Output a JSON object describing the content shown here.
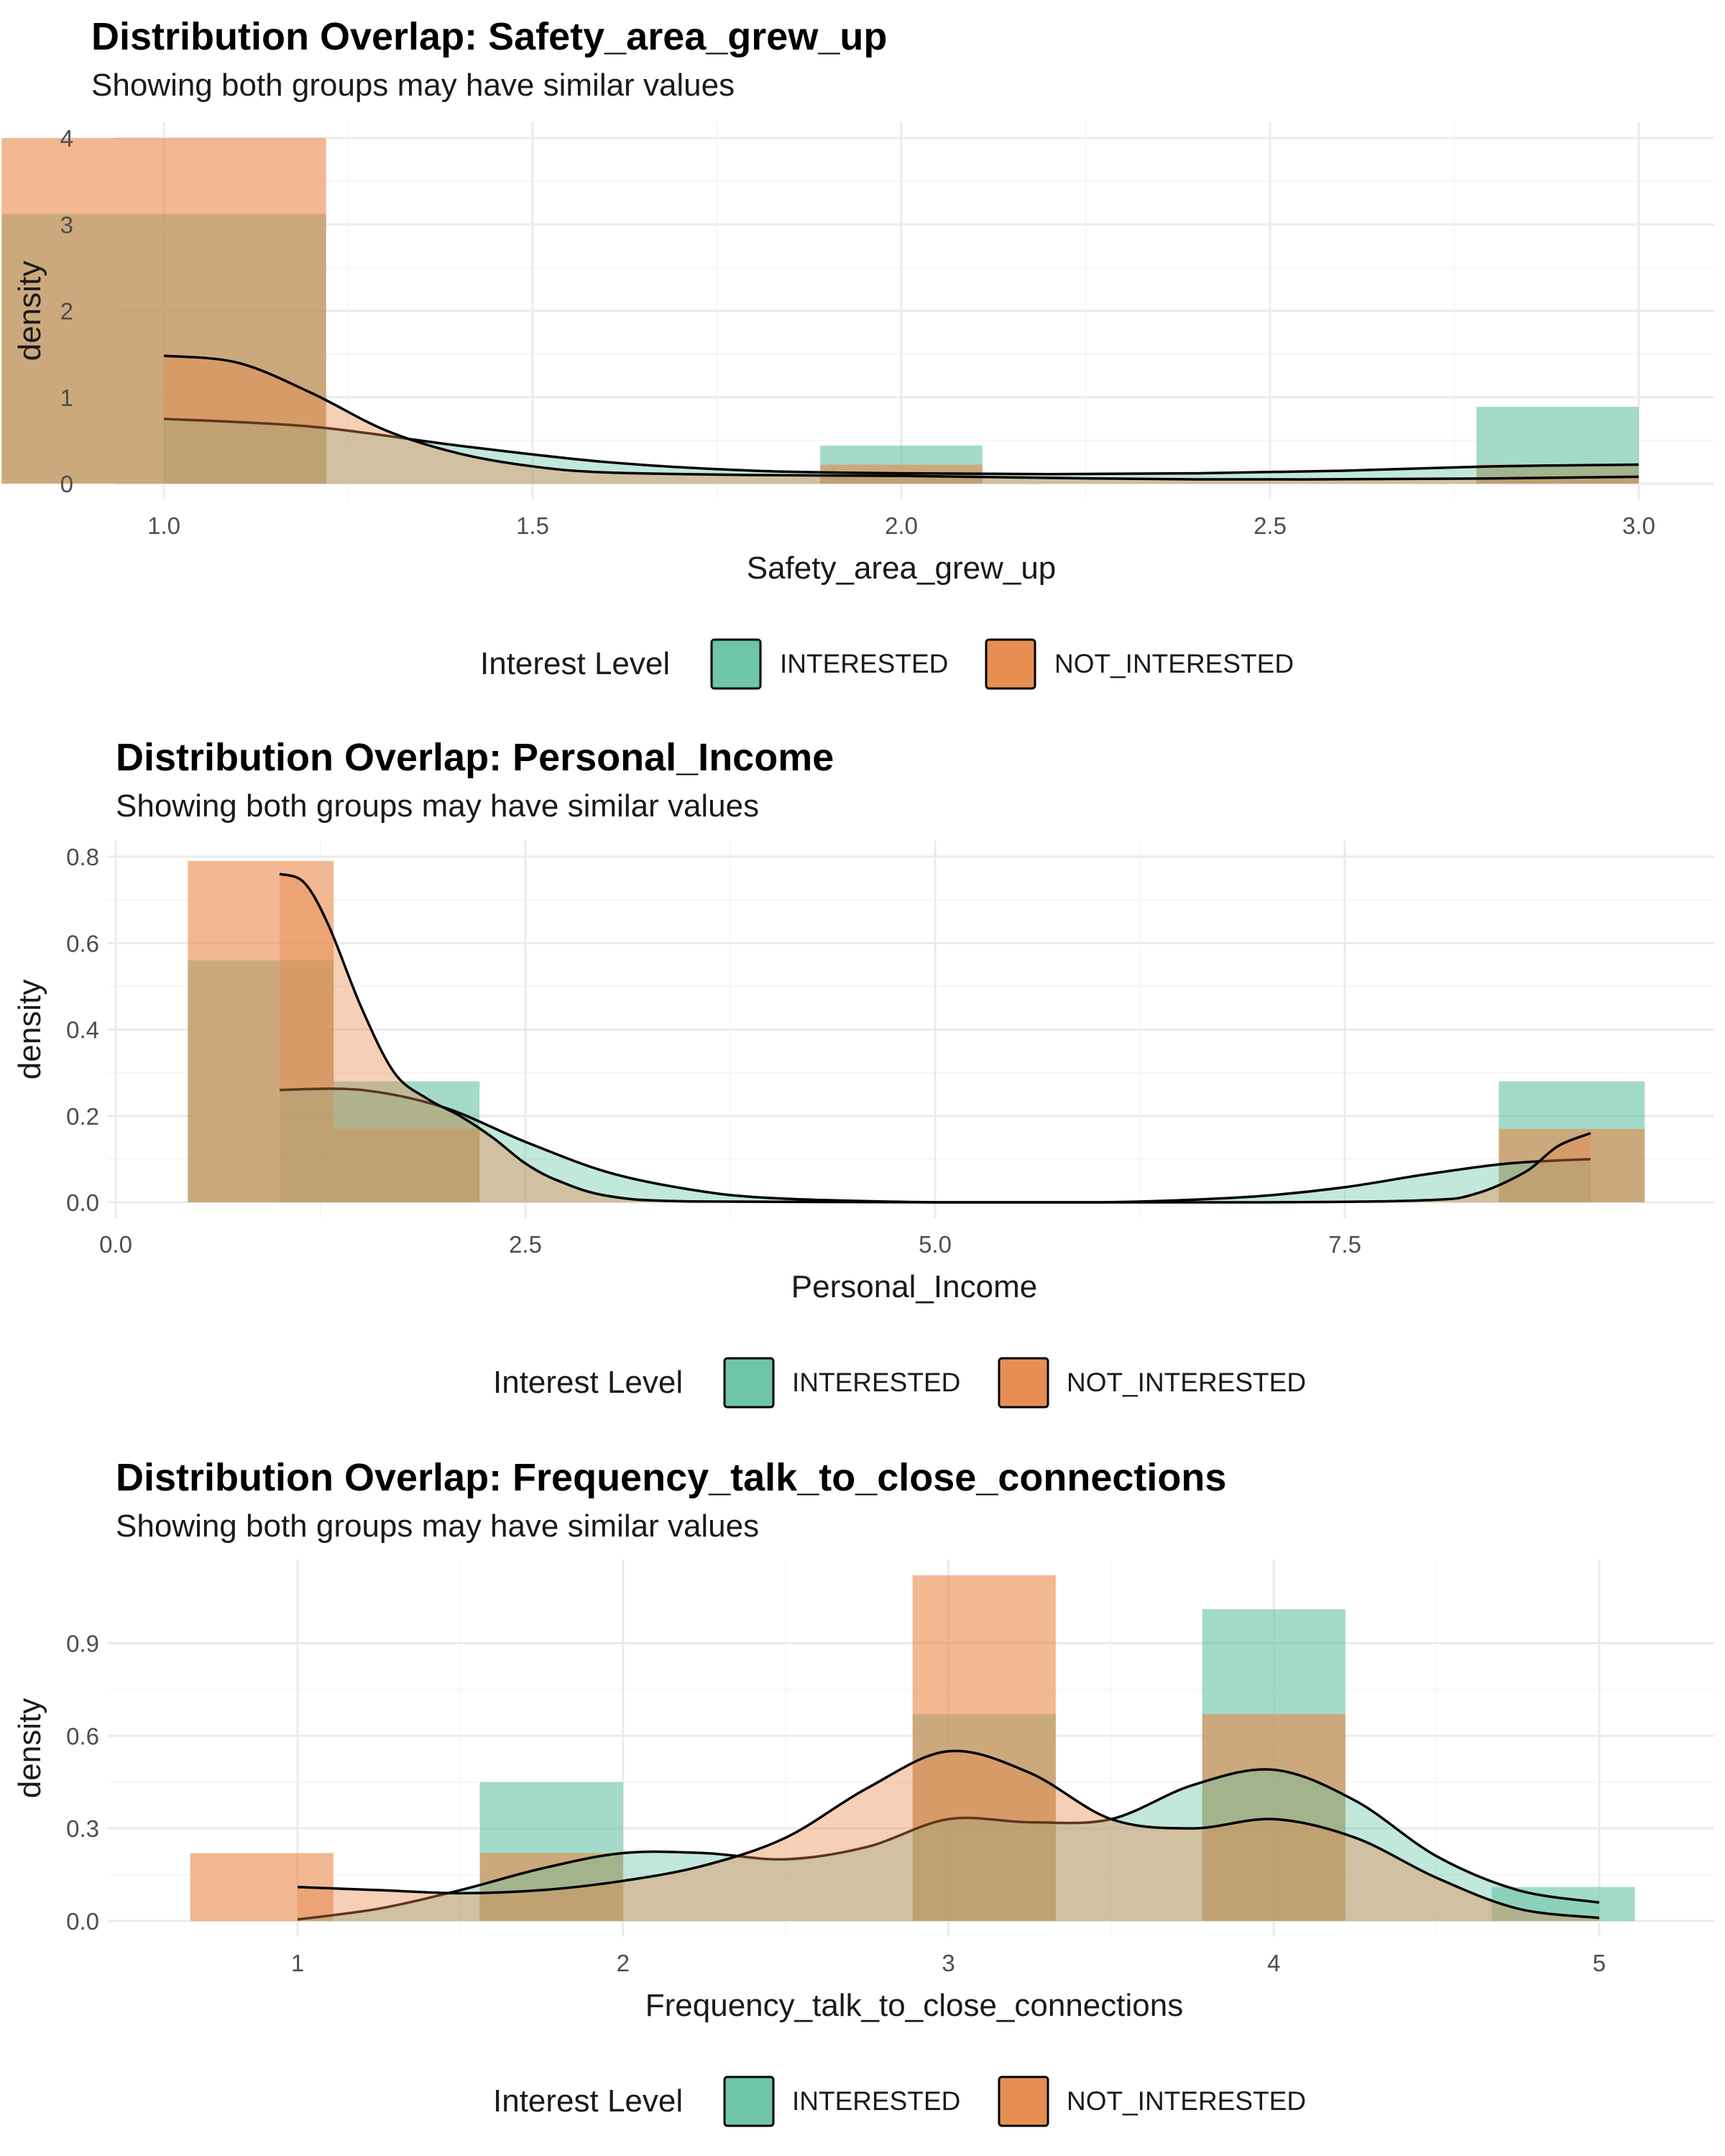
{
  "colors": {
    "INTERESTED": "#66C2A5",
    "NOT_INTERESTED": "#E8884A"
  },
  "chart_data": [
    {
      "type": "histogram+density",
      "title": "Distribution Overlap: Safety_area_grew_up",
      "subtitle": "Showing both groups may have similar values",
      "xlabel": "Safety_area_grew_up",
      "ylabel": "density",
      "xlim": [
        1.0,
        3.0
      ],
      "ylim": [
        0,
        4.0
      ],
      "xticks": [
        1.0,
        1.5,
        2.0,
        2.5,
        3.0
      ],
      "xtick_labels": [
        "1.0",
        "1.5",
        "2.0",
        "2.5",
        "3.0"
      ],
      "yticks": [
        0,
        1,
        2,
        3,
        4
      ],
      "ytick_labels": [
        "0",
        "1",
        "2",
        "3",
        "4"
      ],
      "legend": {
        "title": "Interest Level",
        "position": "bottom",
        "entries": [
          "INTERESTED",
          "NOT_INTERESTED"
        ]
      },
      "histograms": [
        {
          "series": "INTERESTED",
          "bins": [
            {
              "x0": 0.78,
              "x1": 1.22,
              "y": 3.12
            },
            {
              "x0": 1.89,
              "x1": 2.11,
              "y": 0.44
            },
            {
              "x0": 2.78,
              "x1": 3.0,
              "y": 0.89
            }
          ]
        },
        {
          "series": "NOT_INTERESTED",
          "bins": [
            {
              "x0": 0.78,
              "x1": 1.22,
              "y": 4.0
            },
            {
              "x0": 1.89,
              "x1": 2.11,
              "y": 0.22
            },
            {
              "x0": 2.78,
              "x1": 3.0,
              "y": 0.22
            }
          ]
        }
      ],
      "densities": [
        {
          "series": "INTERESTED",
          "x": [
            1.0,
            1.2,
            1.4,
            1.6,
            1.8,
            2.0,
            2.2,
            2.4,
            2.6,
            2.8,
            3.0
          ],
          "y": [
            0.75,
            0.66,
            0.44,
            0.25,
            0.15,
            0.12,
            0.11,
            0.12,
            0.15,
            0.2,
            0.22
          ]
        },
        {
          "series": "NOT_INTERESTED",
          "x": [
            1.0,
            1.1,
            1.2,
            1.3,
            1.4,
            1.5,
            1.6,
            1.8,
            2.0,
            2.4,
            2.8,
            3.0
          ],
          "y": [
            1.48,
            1.4,
            1.05,
            0.62,
            0.35,
            0.2,
            0.13,
            0.1,
            0.09,
            0.05,
            0.06,
            0.08
          ]
        }
      ]
    },
    {
      "type": "histogram+density",
      "title": "Distribution Overlap: Personal_Income",
      "subtitle": "Showing both groups may have similar values",
      "xlabel": "Personal_Income",
      "ylabel": "density",
      "xlim": [
        0.0,
        9.0
      ],
      "ylim": [
        0,
        0.8
      ],
      "xticks": [
        0.0,
        2.5,
        5.0,
        7.5
      ],
      "xtick_labels": [
        "0.0",
        "2.5",
        "5.0",
        "7.5"
      ],
      "yticks": [
        0.0,
        0.2,
        0.4,
        0.6,
        0.8
      ],
      "ytick_labels": [
        "0.0",
        "0.2",
        "0.4",
        "0.6",
        "0.8"
      ],
      "legend": {
        "title": "Interest Level",
        "position": "bottom",
        "entries": [
          "INTERESTED",
          "NOT_INTERESTED"
        ]
      },
      "histograms": [
        {
          "series": "INTERESTED",
          "bins": [
            {
              "x0": 0.44,
              "x1": 1.33,
              "y": 0.56
            },
            {
              "x0": 1.33,
              "x1": 2.22,
              "y": 0.28
            },
            {
              "x0": 8.44,
              "x1": 9.33,
              "y": 0.28
            }
          ]
        },
        {
          "series": "NOT_INTERESTED",
          "bins": [
            {
              "x0": 0.44,
              "x1": 1.33,
              "y": 0.79
            },
            {
              "x0": 1.33,
              "x1": 2.22,
              "y": 0.17
            },
            {
              "x0": 8.44,
              "x1": 9.33,
              "y": 0.17
            }
          ]
        }
      ],
      "densities": [
        {
          "series": "INTERESTED",
          "x": [
            1.0,
            1.5,
            2.0,
            2.5,
            3.0,
            3.5,
            4.0,
            5.0,
            6.0,
            6.5,
            7.0,
            7.5,
            8.0,
            8.5,
            9.0
          ],
          "y": [
            0.26,
            0.26,
            0.22,
            0.14,
            0.07,
            0.03,
            0.01,
            0.0,
            0.0,
            0.005,
            0.015,
            0.035,
            0.065,
            0.09,
            0.1
          ]
        },
        {
          "series": "NOT_INTERESTED",
          "x": [
            1.0,
            1.15,
            1.3,
            1.5,
            1.7,
            1.9,
            2.1,
            2.3,
            2.5,
            2.7,
            3.0,
            3.5,
            5.0,
            7.0,
            8.0,
            8.3,
            8.6,
            8.8,
            9.0
          ],
          "y": [
            0.76,
            0.74,
            0.64,
            0.45,
            0.3,
            0.24,
            0.2,
            0.15,
            0.09,
            0.05,
            0.015,
            0.002,
            0.0,
            0.0,
            0.005,
            0.02,
            0.07,
            0.13,
            0.16
          ]
        }
      ]
    },
    {
      "type": "histogram+density",
      "title": "Distribution Overlap: Frequency_talk_to_close_connections",
      "subtitle": "Showing both groups may have similar values",
      "xlabel": "Frequency_talk_to_close_connections",
      "ylabel": "density",
      "xlim": [
        1.0,
        5.0
      ],
      "ylim": [
        0,
        1.12
      ],
      "xticks": [
        1,
        2,
        3,
        4,
        5
      ],
      "xtick_labels": [
        "1",
        "2",
        "3",
        "4",
        "5"
      ],
      "yticks": [
        0.0,
        0.3,
        0.6,
        0.9
      ],
      "ytick_labels": [
        "0.0",
        "0.3",
        "0.6",
        "0.9"
      ],
      "legend": {
        "title": "Interest Level",
        "position": "bottom",
        "entries": [
          "INTERESTED",
          "NOT_INTERESTED"
        ]
      },
      "histograms": [
        {
          "series": "INTERESTED",
          "bins": [
            {
              "x0": 1.56,
              "x1": 2.0,
              "y": 0.45
            },
            {
              "x0": 2.89,
              "x1": 3.33,
              "y": 0.67
            },
            {
              "x0": 3.78,
              "x1": 4.22,
              "y": 1.01
            },
            {
              "x0": 4.67,
              "x1": 5.11,
              "y": 0.11
            }
          ]
        },
        {
          "series": "NOT_INTERESTED",
          "bins": [
            {
              "x0": 0.67,
              "x1": 1.11,
              "y": 0.22
            },
            {
              "x0": 1.56,
              "x1": 2.0,
              "y": 0.22
            },
            {
              "x0": 2.89,
              "x1": 3.33,
              "y": 1.12
            },
            {
              "x0": 3.78,
              "x1": 4.22,
              "y": 0.67
            }
          ]
        }
      ],
      "densities": [
        {
          "series": "INTERESTED",
          "x": [
            1.0,
            1.25,
            1.5,
            1.75,
            2.0,
            2.25,
            2.5,
            2.75,
            3.0,
            3.25,
            3.5,
            3.75,
            4.0,
            4.25,
            4.5,
            4.75,
            5.0
          ],
          "y": [
            0.005,
            0.04,
            0.1,
            0.17,
            0.22,
            0.22,
            0.2,
            0.24,
            0.33,
            0.32,
            0.33,
            0.44,
            0.49,
            0.39,
            0.21,
            0.1,
            0.06
          ]
        },
        {
          "series": "NOT_INTERESTED",
          "x": [
            1.0,
            1.25,
            1.5,
            1.75,
            2.0,
            2.25,
            2.5,
            2.75,
            3.0,
            3.25,
            3.5,
            3.75,
            4.0,
            4.25,
            4.5,
            4.75,
            5.0
          ],
          "y": [
            0.11,
            0.1,
            0.09,
            0.1,
            0.13,
            0.18,
            0.27,
            0.43,
            0.55,
            0.48,
            0.33,
            0.3,
            0.33,
            0.27,
            0.14,
            0.04,
            0.01
          ]
        }
      ]
    }
  ]
}
